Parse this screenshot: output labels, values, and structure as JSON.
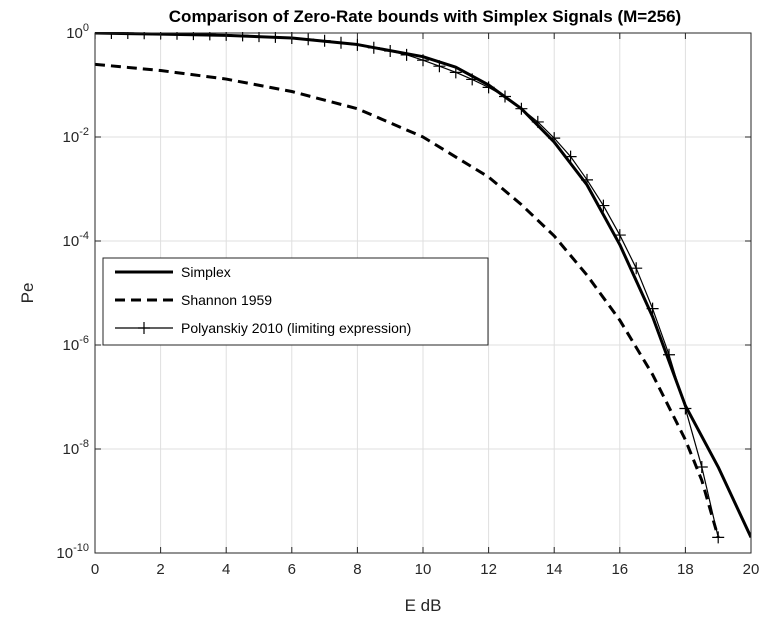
{
  "chart_data": {
    "type": "line",
    "title": "Comparison of Zero-Rate bounds with Simplex Signals (M=256)",
    "xlabel": "E dB",
    "ylabel": "Pe",
    "xlim": [
      0,
      20
    ],
    "ylim": [
      1e-10,
      1
    ],
    "yscale": "log",
    "grid": true,
    "legend_position": "middle-left",
    "x_ticks": [
      "0",
      "2",
      "4",
      "6",
      "8",
      "10",
      "12",
      "14",
      "16",
      "18",
      "20"
    ],
    "y_ticks": [
      {
        "base": "10",
        "exp": "0"
      },
      {
        "base": "10",
        "exp": "-2"
      },
      {
        "base": "10",
        "exp": "-4"
      },
      {
        "base": "10",
        "exp": "-6"
      },
      {
        "base": "10",
        "exp": "-8"
      },
      {
        "base": "10",
        "exp": "-10"
      }
    ],
    "series": [
      {
        "name": "Simplex",
        "style": "solid-thick",
        "color": "#000000",
        "points": [
          [
            0,
            1.0
          ],
          [
            2,
            0.95
          ],
          [
            4,
            0.9
          ],
          [
            6,
            0.8
          ],
          [
            8,
            0.6
          ],
          [
            10,
            0.35
          ],
          [
            11,
            0.22
          ],
          [
            12,
            0.1
          ],
          [
            13,
            0.035
          ],
          [
            14,
            0.008
          ],
          [
            15,
            0.0012
          ],
          [
            16,
            8.5e-05
          ],
          [
            17,
            3.5e-06
          ],
          [
            18,
            6.8e-08
          ],
          [
            19,
            4.5e-09
          ],
          [
            20,
            2e-10
          ]
        ]
      },
      {
        "name": "Shannon 1959",
        "style": "dashed-thick",
        "color": "#000000",
        "points": [
          [
            0,
            0.25
          ],
          [
            2,
            0.19
          ],
          [
            4,
            0.13
          ],
          [
            6,
            0.075
          ],
          [
            8,
            0.035
          ],
          [
            10,
            0.01
          ],
          [
            12,
            0.0017
          ],
          [
            13,
            0.0005
          ],
          [
            14,
            0.000125
          ],
          [
            15,
            2.2e-05
          ],
          [
            16,
            3e-06
          ],
          [
            17,
            2.7e-07
          ],
          [
            18,
            1.5e-08
          ],
          [
            18.5,
            2.5e-09
          ],
          [
            19,
            2e-10
          ]
        ]
      },
      {
        "name": "Polyanskiy 2010 (limiting expression)",
        "style": "solid-thin-plus",
        "color": "#000000",
        "points": [
          [
            0,
            1.0
          ],
          [
            0.5,
            1.0
          ],
          [
            1,
            1.0
          ],
          [
            1.5,
            0.99
          ],
          [
            2,
            0.98
          ],
          [
            2.5,
            0.97
          ],
          [
            3,
            0.95
          ],
          [
            3.5,
            0.94
          ],
          [
            4,
            0.92
          ],
          [
            4.5,
            0.9
          ],
          [
            5,
            0.87
          ],
          [
            5.5,
            0.84
          ],
          [
            6,
            0.8
          ],
          [
            6.5,
            0.76
          ],
          [
            7,
            0.71
          ],
          [
            7.5,
            0.65
          ],
          [
            8,
            0.59
          ],
          [
            8.5,
            0.52
          ],
          [
            9,
            0.45
          ],
          [
            9.5,
            0.38
          ],
          [
            10,
            0.3
          ],
          [
            10.5,
            0.23
          ],
          [
            11,
            0.175
          ],
          [
            11.5,
            0.128
          ],
          [
            12,
            0.09
          ],
          [
            12.5,
            0.06
          ],
          [
            13,
            0.035
          ],
          [
            13.5,
            0.0195
          ],
          [
            14,
            0.0095
          ],
          [
            14.5,
            0.0042
          ],
          [
            15,
            0.0015
          ],
          [
            15.5,
            0.00048
          ],
          [
            16,
            0.00013
          ],
          [
            16.5,
            3e-05
          ],
          [
            17,
            5e-06
          ],
          [
            17.5,
            6.5e-07
          ],
          [
            18,
            6e-08
          ],
          [
            18.5,
            4.5e-09
          ],
          [
            19,
            2e-10
          ]
        ]
      }
    ]
  }
}
